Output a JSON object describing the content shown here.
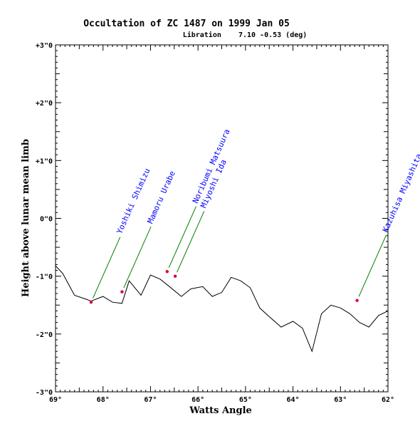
{
  "chart_data": {
    "type": "line",
    "title": "Occultation of ZC 1487 on 1999 Jan 05",
    "subtitle": "Libration    7.10 -0.53 (deg)",
    "xlabel": "Watts Angle",
    "ylabel": "Height above lunar mean limb",
    "xlim": [
      69,
      62
    ],
    "ylim": [
      -3,
      3
    ],
    "x_tick_labels": [
      "69°",
      "68°",
      "67°",
      "66°",
      "65°",
      "64°",
      "63°",
      "62°"
    ],
    "y_tick_labels": [
      "+3\"0",
      "+2\"0",
      "+1\"0",
      "0\"0",
      "-1\"0",
      "-2\"0",
      "-3\"0"
    ],
    "grid": false,
    "limb_profile": {
      "x": [
        69.0,
        68.85,
        68.6,
        68.35,
        68.25,
        68.0,
        67.8,
        67.6,
        67.45,
        67.2,
        67.0,
        66.8,
        66.6,
        66.35,
        66.15,
        65.9,
        65.7,
        65.5,
        65.3,
        65.1,
        64.9,
        64.7,
        64.5,
        64.25,
        64.0,
        63.8,
        63.6,
        63.4,
        63.2,
        63.0,
        62.8,
        62.6,
        62.4,
        62.2,
        62.0
      ],
      "y": [
        -0.82,
        -0.95,
        -1.33,
        -1.4,
        -1.43,
        -1.35,
        -1.45,
        -1.47,
        -1.08,
        -1.33,
        -0.98,
        -1.05,
        -1.18,
        -1.35,
        -1.22,
        -1.18,
        -1.35,
        -1.28,
        -1.02,
        -1.08,
        -1.2,
        -1.55,
        -1.7,
        -1.88,
        -1.78,
        -1.9,
        -2.3,
        -1.65,
        -1.5,
        -1.55,
        -1.65,
        -1.8,
        -1.88,
        -1.68,
        -1.6
      ]
    },
    "observations": [
      {
        "observer": "Yoshiki Shimizu",
        "x": 68.25,
        "y": -1.45
      },
      {
        "observer": "Mamoru Urabe",
        "x": 67.6,
        "y": -1.27
      },
      {
        "observer": "Noribumi Matsuura",
        "x": 66.65,
        "y": -0.92
      },
      {
        "observer": "Miyoshi Ida",
        "x": 66.48,
        "y": -1.0
      },
      {
        "observer": "Kazuhisa Miyashita",
        "x": 62.65,
        "y": -1.42
      }
    ],
    "colors": {
      "profile": "#000000",
      "observation": "#dd0033",
      "leader": "#008000",
      "observer_label": "#0000ff"
    }
  }
}
